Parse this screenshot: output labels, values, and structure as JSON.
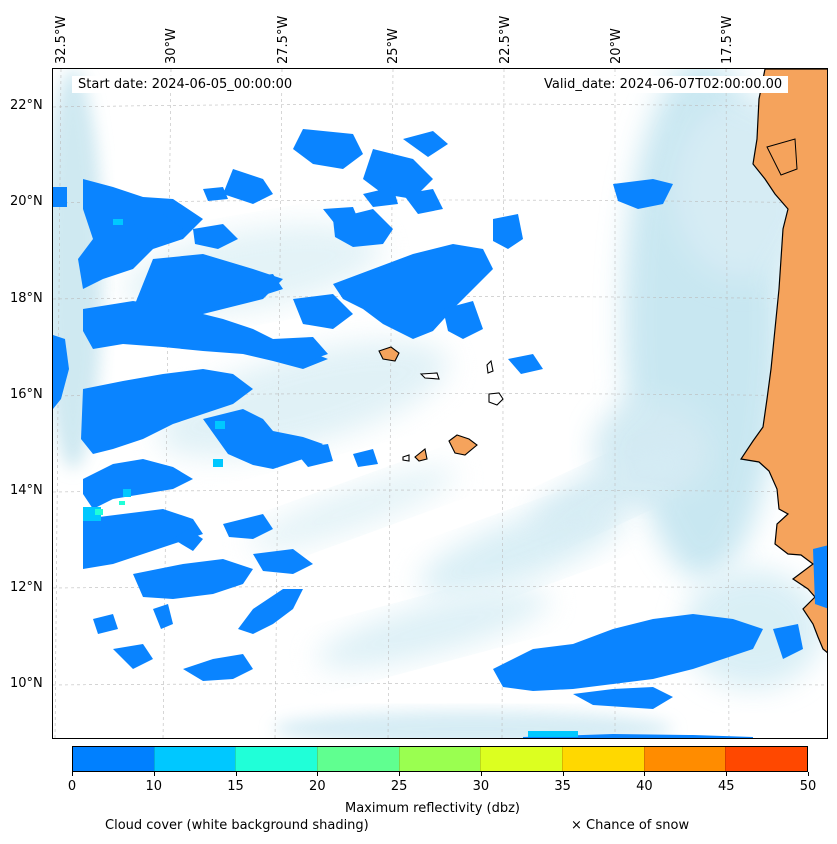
{
  "map": {
    "start_date": "Start date: 2024-06-05_00:00:00",
    "valid_date": "Valid_date: 2024-06-07T02:00:00.00",
    "lon_labels": [
      "32.5°W",
      "30°W",
      "27.5°W",
      "25°W",
      "22.5°W",
      "20°W",
      "17.5°W"
    ],
    "lat_labels": [
      "22°N",
      "20°N",
      "18°N",
      "16°N",
      "14°N",
      "12°N",
      "10°N"
    ],
    "colors": {
      "land": "#f5a35c",
      "cloud": "#bfe3ef",
      "reflectivity_low": "#0a84ff"
    }
  },
  "colorbar": {
    "ticks": [
      "0",
      "10",
      "15",
      "20",
      "25",
      "30",
      "35",
      "40",
      "45",
      "50"
    ],
    "colors": [
      "#0080ff",
      "#00c8ff",
      "#20ffd8",
      "#60ff90",
      "#9aff50",
      "#dcff20",
      "#ffd800",
      "#ff8c00",
      "#ff4800"
    ],
    "label": "Maximum reflectivity (dbz)"
  },
  "legend": {
    "cloud_cover": "Cloud cover (white background shading)",
    "snow": "× Chance of snow"
  }
}
